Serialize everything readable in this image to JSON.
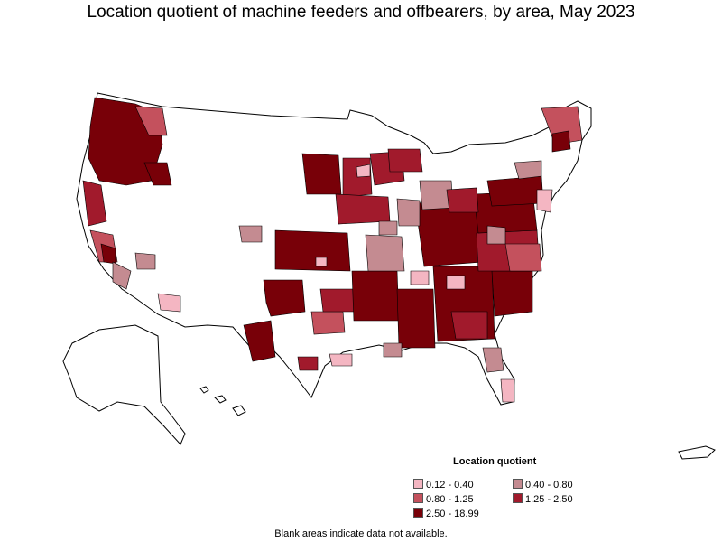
{
  "title": "Location quotient of machine feeders and offbearers, by area, May 2023",
  "legend": {
    "title": "Location quotient",
    "items": [
      {
        "label": "0.12 - 0.40",
        "color": "#f4b6c2"
      },
      {
        "label": "0.40 - 0.80",
        "color": "#c48b91"
      },
      {
        "label": "0.80 - 1.25",
        "color": "#c4515d"
      },
      {
        "label": "1.25 - 2.50",
        "color": "#a11a2c"
      },
      {
        "label": "2.50 - 18.99",
        "color": "#780008"
      }
    ]
  },
  "footnote": "Blank areas indicate data not available.",
  "map": {
    "border_color": "#000000",
    "blank_color": "#ffffff"
  }
}
